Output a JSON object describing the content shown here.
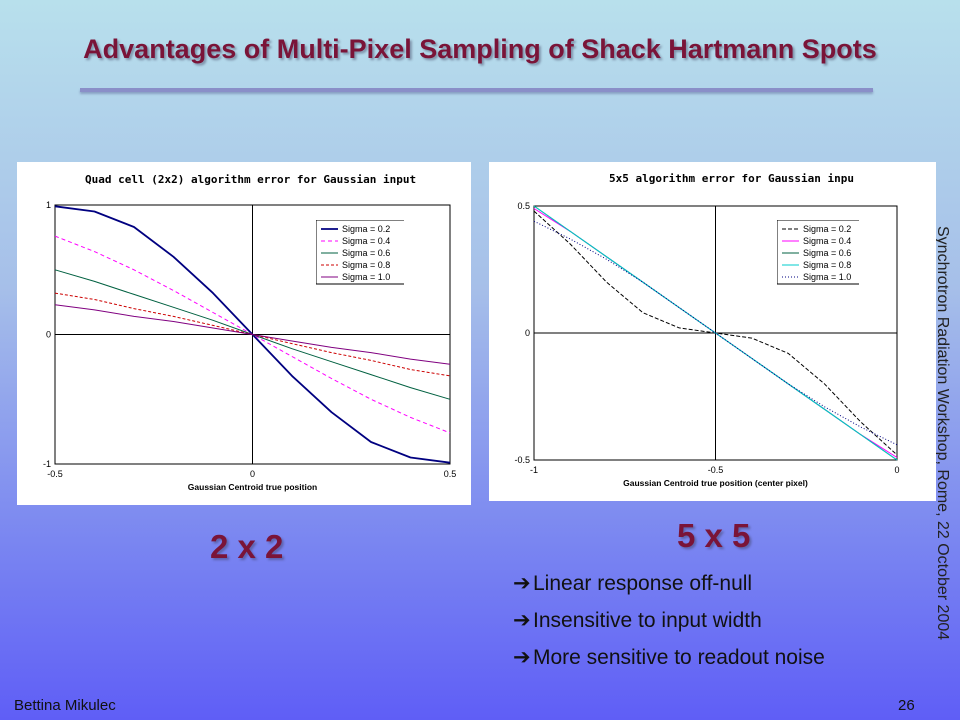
{
  "slide": {
    "title": "Advantages of Multi-Pixel Sampling of Shack Hartmann Spots",
    "side_text": "Synchrotron Radiation Workshop, Rome, 22 October 2004",
    "label_left": "2 x 2",
    "label_right": "5 x 5",
    "bullets": [
      "Linear response off-null",
      "Insensitive to input width",
      "More sensitive to readout noise"
    ],
    "author": "Bettina Mikulec",
    "page_number": "26"
  },
  "chart_data": [
    {
      "type": "line",
      "title": "Quad cell  (2x2) algorithm error for Gaussian input",
      "xlabel": "Gaussian Centroid true position",
      "ylabel": "",
      "xlim": [
        -0.5,
        0.5
      ],
      "ylim": [
        -1,
        1
      ],
      "x_ticks": [
        "-0.5",
        "0",
        "0.5"
      ],
      "y_ticks": [
        "1",
        "0",
        "-1"
      ],
      "x": [
        -0.5,
        -0.4,
        -0.3,
        -0.2,
        -0.1,
        0,
        0.1,
        0.2,
        0.3,
        0.4,
        0.5
      ],
      "legend_position": "top-right",
      "series": [
        {
          "name": "Sigma = 0.2",
          "color": "#000080",
          "dash": "",
          "width": 1.8,
          "values": [
            0.99,
            0.95,
            0.83,
            0.6,
            0.32,
            0,
            -0.32,
            -0.6,
            -0.83,
            -0.95,
            -0.99
          ]
        },
        {
          "name": "Sigma = 0.4",
          "color": "#ff00ff",
          "dash": "4,3",
          "width": 1,
          "values": [
            0.76,
            0.64,
            0.5,
            0.34,
            0.17,
            0,
            -0.17,
            -0.34,
            -0.5,
            -0.64,
            -0.76
          ]
        },
        {
          "name": "Sigma = 0.6",
          "color": "#006040",
          "dash": "",
          "width": 1,
          "values": [
            0.5,
            0.41,
            0.31,
            0.21,
            0.11,
            0,
            -0.11,
            -0.21,
            -0.31,
            -0.41,
            -0.5
          ]
        },
        {
          "name": "Sigma = 0.8",
          "color": "#cc0000",
          "dash": "3,2",
          "width": 1,
          "values": [
            0.32,
            0.27,
            0.2,
            0.14,
            0.07,
            0,
            -0.07,
            -0.14,
            -0.2,
            -0.27,
            -0.32
          ]
        },
        {
          "name": "Sigma = 1.0",
          "color": "#800080",
          "dash": "",
          "width": 1,
          "values": [
            0.23,
            0.19,
            0.14,
            0.1,
            0.05,
            0,
            -0.05,
            -0.1,
            -0.14,
            -0.19,
            -0.23
          ]
        }
      ]
    },
    {
      "type": "line",
      "title": "5x5 algorithm error for Gaussian inpu",
      "xlabel": "Gaussian Centroid true position (center pixel)",
      "ylabel": "",
      "xlim": [
        -1,
        0
      ],
      "ylim": [
        -0.5,
        0.5
      ],
      "x_ticks": [
        "-1",
        "-0.5",
        "0"
      ],
      "y_ticks": [
        "0.5",
        "0",
        "-0.5"
      ],
      "x": [
        -1,
        -0.9,
        -0.8,
        -0.7,
        -0.6,
        -0.5,
        -0.4,
        -0.3,
        -0.2,
        -0.1,
        0
      ],
      "legend_position": "top-right",
      "series": [
        {
          "name": "Sigma = 0.2",
          "color": "#000000",
          "dash": "4,2",
          "width": 1,
          "values": [
            0.48,
            0.35,
            0.2,
            0.08,
            0.02,
            0,
            -0.02,
            -0.08,
            -0.2,
            -0.35,
            -0.48
          ]
        },
        {
          "name": "Sigma = 0.4",
          "color": "#ff00ff",
          "dash": "",
          "width": 1,
          "values": [
            0.49,
            0.4,
            0.3,
            0.2,
            0.1,
            0,
            -0.1,
            -0.2,
            -0.3,
            -0.4,
            -0.49
          ]
        },
        {
          "name": "Sigma = 0.6",
          "color": "#006040",
          "dash": "",
          "width": 1,
          "values": [
            0.5,
            0.4,
            0.3,
            0.2,
            0.1,
            0,
            -0.1,
            -0.2,
            -0.3,
            -0.4,
            -0.5
          ]
        },
        {
          "name": "Sigma = 0.8",
          "color": "#00cccc",
          "dash": "",
          "width": 1,
          "values": [
            0.5,
            0.4,
            0.3,
            0.2,
            0.1,
            0,
            -0.1,
            -0.2,
            -0.3,
            -0.4,
            -0.5
          ]
        },
        {
          "name": "Sigma = 1.0",
          "color": "#000080",
          "dash": "1,2",
          "width": 1,
          "values": [
            0.44,
            0.37,
            0.29,
            0.2,
            0.1,
            0,
            -0.1,
            -0.2,
            -0.29,
            -0.37,
            -0.44
          ]
        }
      ]
    }
  ]
}
